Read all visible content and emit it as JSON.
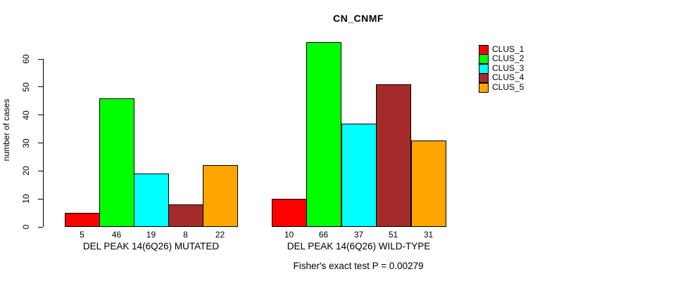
{
  "chart_data": {
    "type": "bar",
    "title": "CN_CNMF",
    "ylabel": "number of cases",
    "xlabel": "",
    "ylim": [
      0,
      60
    ],
    "yticks": [
      0,
      10,
      20,
      30,
      40,
      50,
      60
    ],
    "grid": false,
    "legend_position": "top-right",
    "categories": [
      "DEL PEAK 14(6Q26) MUTATED",
      "DEL PEAK 14(6Q26) WILD-TYPE"
    ],
    "series": [
      {
        "name": "CLUS_1",
        "color": "#FF0000",
        "values": [
          5,
          10
        ]
      },
      {
        "name": "CLUS_2",
        "color": "#00FF00",
        "values": [
          46,
          66
        ]
      },
      {
        "name": "CLUS_3",
        "color": "#00FFFF",
        "values": [
          19,
          37
        ]
      },
      {
        "name": "CLUS_4",
        "color": "#A52A2A",
        "values": [
          8,
          51
        ]
      },
      {
        "name": "CLUS_5",
        "color": "#FFA500",
        "values": [
          22,
          31
        ]
      }
    ],
    "bar_value_labels_shown": true,
    "annotation": "Fisher's exact test P = 0.00279"
  }
}
